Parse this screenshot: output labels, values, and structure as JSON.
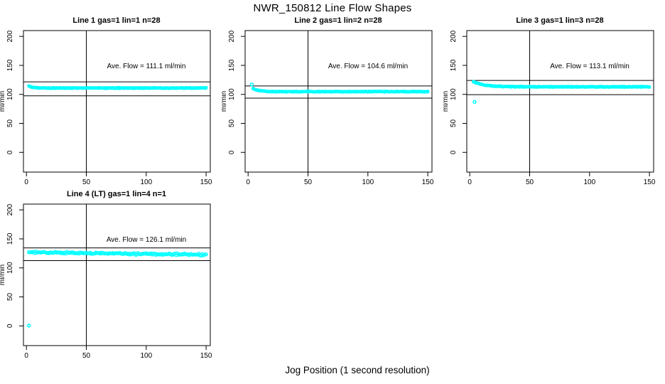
{
  "chart_data": {
    "type": "scatter",
    "title": "NWR_150812  Line Flow Shapes",
    "xlabel": "Jog Position (1 second resolution)",
    "ylabel": "ml/min",
    "x_ticks": [
      0,
      50,
      100,
      150
    ],
    "y_ticks": [
      0,
      50,
      100,
      150,
      200
    ],
    "xlim": [
      -2.5,
      153.5
    ],
    "ylim": [
      -34,
      210
    ],
    "grid": false,
    "point_color": "#00ffff",
    "line_color": "#000000",
    "vline_x": 50,
    "panels": [
      {
        "title": "Line 1 gas=1 lin=1 n=28",
        "ave_label": "Ave. Flow =  111.1  ml/min",
        "ave_flow": 111.1,
        "ref_upper": 121.5,
        "ref_lower": 97.5,
        "marker_r": 1.6,
        "series": {
          "x_start": 2,
          "x_end": 150,
          "x_step": 1,
          "runs": 3,
          "steady": 111,
          "transient_amp": 3.5,
          "transient_tau": 3,
          "drift": 0,
          "noise": 0.9,
          "seed": 11
        },
        "outliers": []
      },
      {
        "title": "Line 2 gas=1 lin=2 n=28",
        "ave_label": "Ave. Flow =  104.6  ml/min",
        "ave_flow": 104.6,
        "ref_upper": 114.5,
        "ref_lower": 93.5,
        "marker_r": 1.6,
        "series": {
          "x_start": 4,
          "x_end": 150,
          "x_step": 1,
          "runs": 3,
          "steady": 104.7,
          "transient_amp": 5.5,
          "transient_tau": 5,
          "drift": 0,
          "noise": 0.9,
          "seed": 22
        },
        "outliers": [
          [
            3,
            117
          ]
        ]
      },
      {
        "title": "Line 3 gas=1 lin=3 n=28",
        "ave_label": "Ave. Flow =  113.1  ml/min",
        "ave_flow": 113.1,
        "ref_upper": 124.0,
        "ref_lower": 99.5,
        "marker_r": 1.6,
        "series": {
          "x_start": 3,
          "x_end": 150,
          "x_step": 1,
          "runs": 3,
          "steady": 113,
          "transient_amp": 9,
          "transient_tau": 9,
          "drift": 0,
          "noise": 0.9,
          "seed": 33
        },
        "outliers": [
          [
            4,
            87
          ]
        ]
      },
      {
        "title": "Line 4 (LT) gas=1 lin=4 n=1",
        "ave_label": "Ave. Flow =  126.1  ml/min",
        "ave_flow": 126.1,
        "ref_upper": 134.5,
        "ref_lower": 112.5,
        "marker_r": 2.0,
        "series": {
          "x_start": 2,
          "x_end": 150,
          "x_step": 1,
          "runs": 1,
          "steady": 127,
          "transient_amp": 0,
          "transient_tau": 1,
          "drift": -0.03,
          "noise": 2.0,
          "seed": 44
        },
        "outliers": [
          [
            2,
            0.5
          ]
        ]
      }
    ]
  }
}
